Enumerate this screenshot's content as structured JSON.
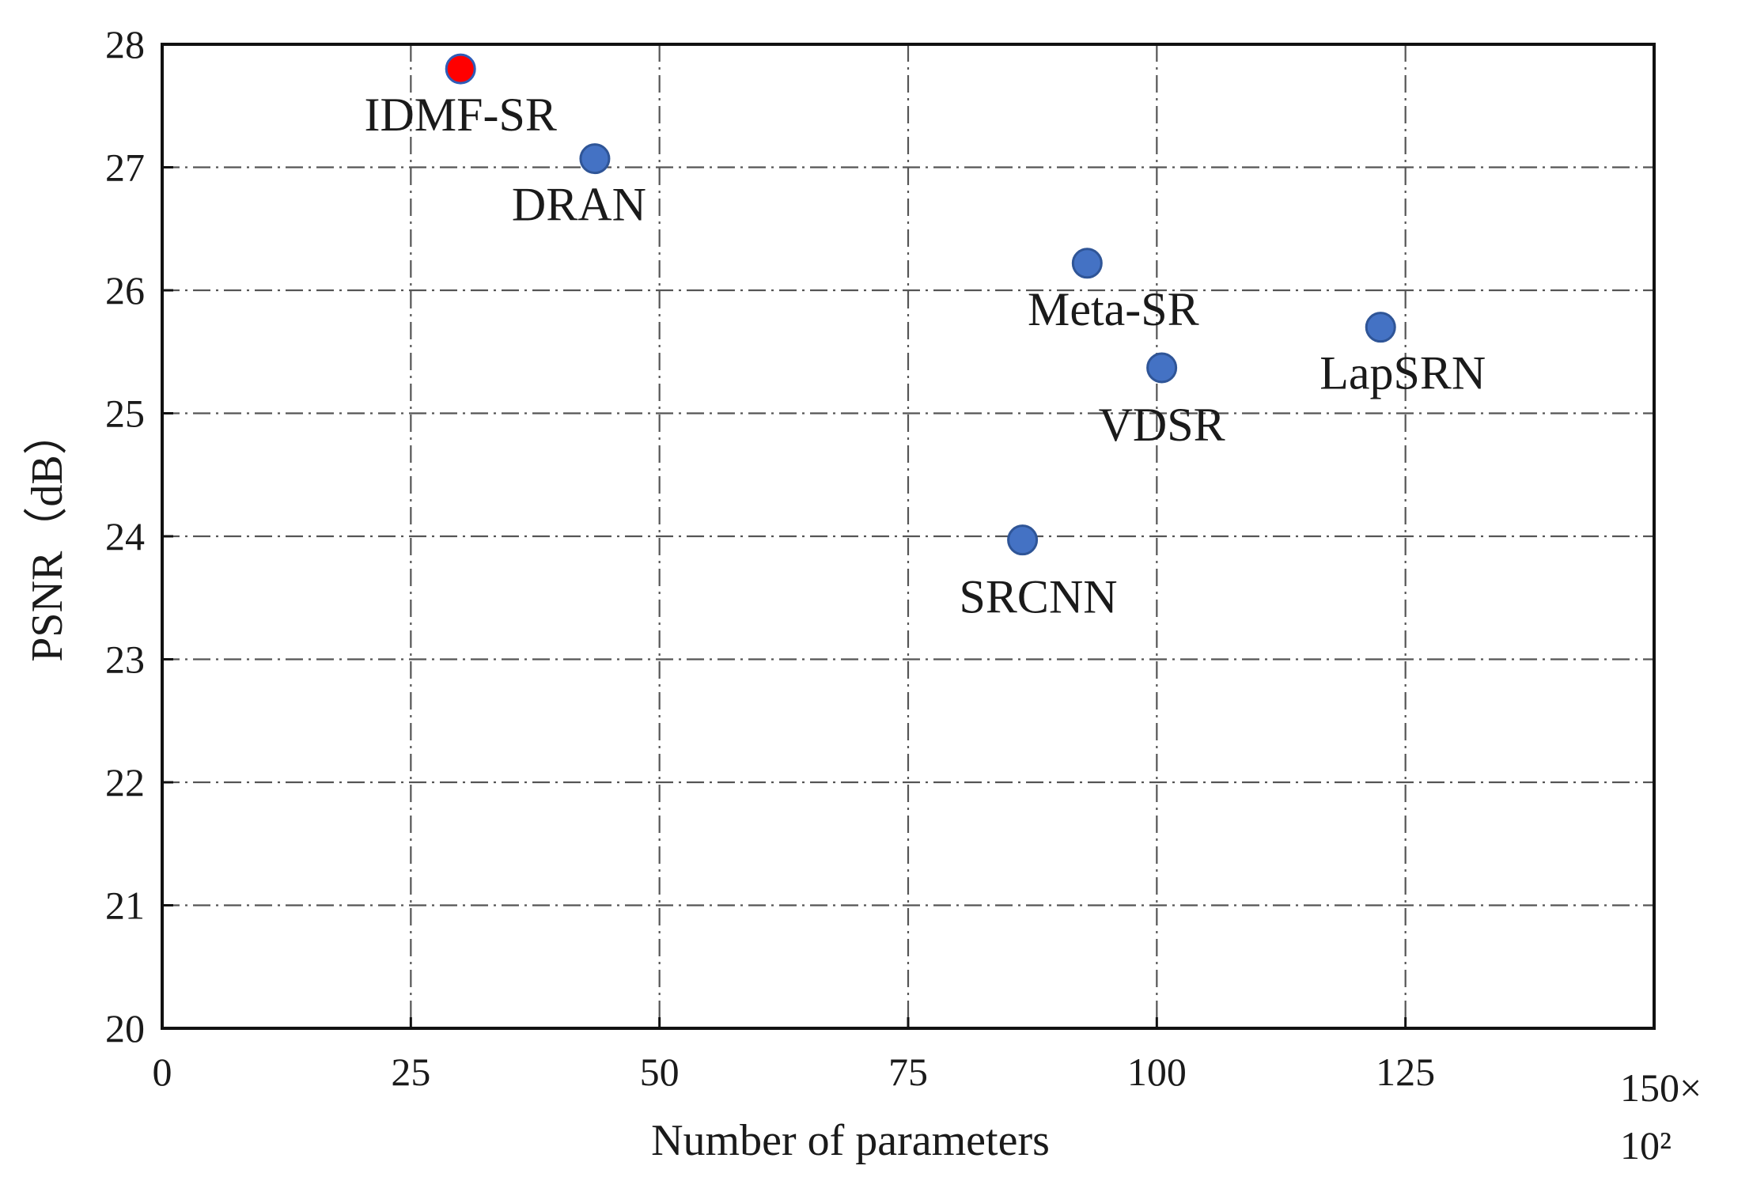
{
  "chart_data": {
    "type": "scatter",
    "xlabel": "Number of parameters",
    "x_unit_prefix": "150×",
    "x_unit_power": "10²",
    "ylabel": "PSNR（dB）",
    "xlim": [
      0,
      150
    ],
    "ylim": [
      20,
      28
    ],
    "x_ticks": [
      "0",
      "25",
      "50",
      "75",
      "100",
      "125"
    ],
    "y_ticks": [
      "20",
      "21",
      "22",
      "23",
      "24",
      "25",
      "26",
      "27",
      "28"
    ],
    "grid": true,
    "points": [
      {
        "label": "IDMF-SR",
        "x": 30,
        "y": 27.8,
        "color": "#ff0000",
        "edge": "#2e5cb8"
      },
      {
        "label": "DRAN",
        "x": 43.5,
        "y": 27.07,
        "color": "#4472c4",
        "edge": "#2f5597"
      },
      {
        "label": "Meta-SR",
        "x": 93,
        "y": 26.22,
        "color": "#4472c4",
        "edge": "#2f5597"
      },
      {
        "label": "LapSRN",
        "x": 122.5,
        "y": 25.7,
        "color": "#4472c4",
        "edge": "#2f5597"
      },
      {
        "label": "VDSR",
        "x": 100.5,
        "y": 25.37,
        "color": "#4472c4",
        "edge": "#2f5597"
      },
      {
        "label": "SRCNN",
        "x": 86.5,
        "y": 23.97,
        "color": "#4472c4",
        "edge": "#2f5597"
      }
    ]
  }
}
